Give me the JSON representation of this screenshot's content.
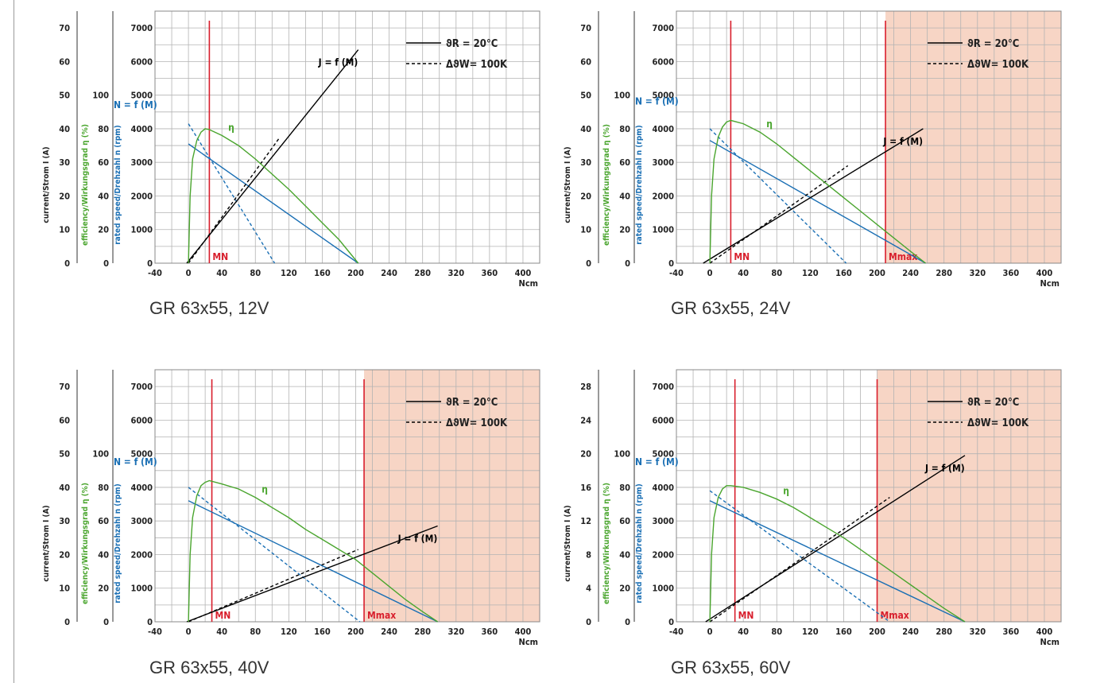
{
  "colors": {
    "current": "#000000",
    "speed": "#1a6fb4",
    "efficiency": "#4aa52e",
    "marker": "#d81e2c",
    "overload": "#f7d5c5",
    "grid": "#b3b3b3"
  },
  "axes_labels": {
    "current": "current/Strom I (A)",
    "efficiency": "efficiency/Wirkungsgrad η (%)",
    "speed": "rated speed/Drehzahl n (rpm)",
    "x_unit": "Ncm"
  },
  "legend": {
    "solid": "ϑR = 20°C",
    "dashed": "ΔϑW= 100K"
  },
  "chart_data": [
    {
      "type": "line",
      "title": "GR 63x55, 12V",
      "x_ticks": [
        -40,
        0,
        40,
        80,
        120,
        160,
        200,
        240,
        280,
        320,
        360,
        400
      ],
      "xlim": [
        -40,
        420
      ],
      "current_ticks": [
        0,
        10,
        20,
        30,
        40,
        50,
        60,
        70
      ],
      "current_lim": [
        0,
        75
      ],
      "efficiency_ticks": [
        0,
        20,
        40,
        60,
        80,
        100
      ],
      "speed_ticks": [
        0,
        1000,
        2000,
        3000,
        4000,
        5000,
        6000,
        7000
      ],
      "speed_lim": [
        0,
        7500
      ],
      "m_n": 25,
      "m_max": null,
      "overload_from": null,
      "labels": {
        "speed": "N = f (M)",
        "current": "J = f (M)",
        "efficiency": "η",
        "mn": "MN",
        "mmax": ""
      },
      "series": [
        {
          "name": "N = f (M)",
          "axis": "speed",
          "style": "solid",
          "x": [
            0,
            203
          ],
          "y": [
            3550,
            0
          ]
        },
        {
          "name": "N = f (M) 100K",
          "axis": "speed",
          "style": "dashed",
          "x": [
            0,
            103
          ],
          "y": [
            4150,
            0
          ]
        },
        {
          "name": "J = f (M)",
          "axis": "current",
          "style": "solid",
          "x": [
            -2,
            203
          ],
          "y": [
            0,
            63.5
          ]
        },
        {
          "name": "J = f (M) 100K",
          "axis": "current",
          "style": "dashed",
          "x": [
            0,
            108
          ],
          "y": [
            0,
            37
          ]
        },
        {
          "name": "η",
          "axis": "efficiency",
          "style": "solid",
          "x": [
            0,
            2,
            5,
            10,
            15,
            20,
            25,
            40,
            60,
            80,
            100,
            120,
            140,
            160,
            180,
            203
          ],
          "y": [
            0,
            40,
            62,
            73,
            78,
            80,
            79.5,
            76,
            70,
            62,
            53,
            44,
            34,
            24,
            14,
            0
          ]
        }
      ]
    },
    {
      "type": "line",
      "title": "GR 63x55, 24V",
      "x_ticks": [
        -40,
        0,
        40,
        80,
        120,
        160,
        200,
        240,
        280,
        320,
        360,
        400
      ],
      "xlim": [
        -40,
        420
      ],
      "current_ticks": [
        0,
        10,
        20,
        30,
        40,
        50,
        60,
        70
      ],
      "current_lim": [
        0,
        75
      ],
      "efficiency_ticks": [
        0,
        20,
        40,
        60,
        80,
        100
      ],
      "speed_ticks": [
        0,
        1000,
        2000,
        3000,
        4000,
        5000,
        6000,
        7000
      ],
      "speed_lim": [
        0,
        7500
      ],
      "m_n": 25,
      "m_max": 210,
      "overload_from": 210,
      "labels": {
        "speed": "N = f (M)",
        "current": "J = f (M)",
        "efficiency": "η",
        "mn": "MN",
        "mmax": "Mmax"
      },
      "series": [
        {
          "name": "N = f (M)",
          "axis": "speed",
          "style": "solid",
          "x": [
            0,
            258
          ],
          "y": [
            3650,
            0
          ]
        },
        {
          "name": "N = f (M) 100K",
          "axis": "speed",
          "style": "dashed",
          "x": [
            0,
            163
          ],
          "y": [
            4000,
            0
          ]
        },
        {
          "name": "J = f (M)",
          "axis": "current",
          "style": "solid",
          "x": [
            -8,
            255
          ],
          "y": [
            0,
            40
          ]
        },
        {
          "name": "J = f (M) 100K",
          "axis": "current",
          "style": "dashed",
          "x": [
            0,
            165
          ],
          "y": [
            0,
            29
          ]
        },
        {
          "name": "η",
          "axis": "efficiency",
          "style": "solid",
          "x": [
            0,
            2,
            5,
            10,
            15,
            20,
            25,
            40,
            60,
            80,
            100,
            120,
            140,
            160,
            180,
            200,
            220,
            240,
            258
          ],
          "y": [
            0,
            40,
            62,
            75,
            81,
            84,
            85,
            83,
            78,
            71,
            63,
            55,
            47,
            39,
            31,
            23,
            15,
            7,
            0
          ]
        }
      ]
    },
    {
      "type": "line",
      "title": "GR 63x55, 40V",
      "x_ticks": [
        -40,
        0,
        40,
        80,
        120,
        160,
        200,
        240,
        280,
        320,
        360,
        400
      ],
      "xlim": [
        -40,
        420
      ],
      "current_ticks": [
        0,
        10,
        20,
        30,
        40,
        50,
        60,
        70
      ],
      "current_lim": [
        0,
        75
      ],
      "efficiency_ticks": [
        0,
        20,
        40,
        60,
        80,
        100
      ],
      "speed_ticks": [
        0,
        1000,
        2000,
        3000,
        4000,
        5000,
        6000,
        7000
      ],
      "speed_lim": [
        0,
        7500
      ],
      "m_n": 28,
      "m_max": 210,
      "overload_from": 210,
      "labels": {
        "speed": "N = f (M)",
        "current": "J = f (M)",
        "efficiency": "η",
        "mn": "MN",
        "mmax": "Mmax"
      },
      "series": [
        {
          "name": "N = f (M)",
          "axis": "speed",
          "style": "solid",
          "x": [
            0,
            298
          ],
          "y": [
            3600,
            0
          ]
        },
        {
          "name": "N = f (M) 100K",
          "axis": "speed",
          "style": "dashed",
          "x": [
            0,
            205
          ],
          "y": [
            4000,
            0
          ]
        },
        {
          "name": "J = f (M)",
          "axis": "current",
          "style": "solid",
          "x": [
            -2,
            298
          ],
          "y": [
            0,
            28.5
          ]
        },
        {
          "name": "J = f (M) 100K",
          "axis": "current",
          "style": "dashed",
          "x": [
            0,
            203
          ],
          "y": [
            0,
            21.5
          ]
        },
        {
          "name": "η",
          "axis": "efficiency",
          "style": "solid",
          "x": [
            0,
            2,
            5,
            10,
            15,
            20,
            25,
            40,
            60,
            80,
            100,
            120,
            140,
            160,
            180,
            200,
            220,
            240,
            260,
            280,
            298
          ],
          "y": [
            0,
            40,
            62,
            75,
            81,
            83,
            84,
            82,
            79,
            74,
            68,
            62,
            55,
            49,
            43,
            37,
            29,
            21,
            13,
            6,
            0
          ]
        }
      ]
    },
    {
      "type": "line",
      "title": "GR 63x55, 60V",
      "x_ticks": [
        -40,
        0,
        40,
        80,
        120,
        160,
        200,
        240,
        280,
        320,
        360,
        400
      ],
      "xlim": [
        -40,
        420
      ],
      "current_ticks": [
        0,
        4,
        8,
        12,
        16,
        20,
        24,
        28
      ],
      "current_lim": [
        0,
        30
      ],
      "efficiency_ticks": [
        0,
        20,
        40,
        60,
        80,
        100
      ],
      "speed_ticks": [
        0,
        1000,
        2000,
        3000,
        4000,
        5000,
        6000,
        7000
      ],
      "speed_lim": [
        0,
        7500
      ],
      "m_n": 30,
      "m_max": 200,
      "overload_from": 200,
      "labels": {
        "speed": "N = f (M)",
        "current": "J = f (M)",
        "efficiency": "η",
        "mn": "MN",
        "mmax": "Mmax"
      },
      "series": [
        {
          "name": "N = f (M)",
          "axis": "speed",
          "style": "solid",
          "x": [
            0,
            305
          ],
          "y": [
            3600,
            0
          ]
        },
        {
          "name": "N = f (M) 100K",
          "axis": "speed",
          "style": "dashed",
          "x": [
            0,
            215
          ],
          "y": [
            3900,
            0
          ]
        },
        {
          "name": "J = f (M)",
          "axis": "current",
          "style": "solid",
          "x": [
            -5,
            305
          ],
          "y": [
            0,
            19.8
          ]
        },
        {
          "name": "J = f (M) 100K",
          "axis": "current",
          "style": "dashed",
          "x": [
            0,
            215
          ],
          "y": [
            0,
            14.8
          ]
        },
        {
          "name": "η",
          "axis": "efficiency",
          "style": "solid",
          "x": [
            0,
            2,
            5,
            10,
            15,
            20,
            25,
            40,
            60,
            80,
            100,
            120,
            140,
            160,
            180,
            200,
            220,
            240,
            260,
            280,
            305
          ],
          "y": [
            0,
            40,
            62,
            74,
            79,
            81,
            81,
            80,
            77,
            73,
            68,
            62,
            56,
            50,
            43,
            36,
            29,
            22,
            15,
            8,
            0
          ]
        }
      ]
    }
  ]
}
